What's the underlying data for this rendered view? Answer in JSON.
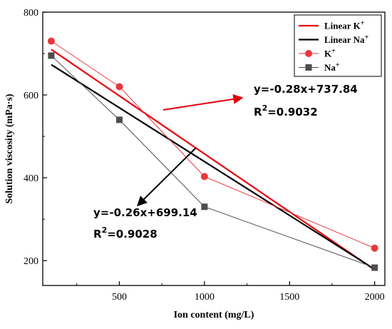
{
  "chart_data": {
    "type": "line",
    "xlabel": "Ion content (mg/L)",
    "ylabel": "Solution viscosity (mPa·s)",
    "xlim": [
      50,
      2060
    ],
    "ylim": [
      140,
      800
    ],
    "xticks": [
      500,
      1000,
      1500,
      2000
    ],
    "yticks": [
      200,
      400,
      600,
      800
    ],
    "series": [
      {
        "name": "K⁺",
        "ion": "K",
        "marker": "circle",
        "color": "#e8383d",
        "x": [
          100,
          500,
          1000,
          2000
        ],
        "y": [
          730,
          620,
          403,
          230
        ]
      },
      {
        "name": "Na⁺",
        "ion": "Na",
        "marker": "square",
        "color": "#4d4d4d",
        "x": [
          100,
          500,
          1000,
          2000
        ],
        "y": [
          695,
          540,
          330,
          183
        ]
      }
    ],
    "fits": [
      {
        "name": "Linear K⁺",
        "ion": "K",
        "color": "#e8000b",
        "slope": -0.28,
        "intercept": 737.84,
        "x_range": [
          100,
          2000
        ],
        "equation": "y=-0.28x+737.84",
        "r2": "R²=0.9032"
      },
      {
        "name": "Linear Na⁺",
        "ion": "Na",
        "color": "#000000",
        "slope": -0.26,
        "intercept": 699.14,
        "x_range": [
          100,
          2000
        ],
        "equation": "y=-0.26x+699.14",
        "r2": "R²=0.9028"
      }
    ],
    "legend": {
      "position": "top-right",
      "entries": [
        {
          "type": "line",
          "prefix": "Linear ",
          "base": "K",
          "sup": "+",
          "color": "#e8000b"
        },
        {
          "type": "line",
          "prefix": "Linear ",
          "base": "Na",
          "sup": "+",
          "color": "#000000"
        },
        {
          "type": "circle",
          "prefix": "",
          "base": "K",
          "sup": "+",
          "color": "#e8383d"
        },
        {
          "type": "square",
          "prefix": "",
          "base": "Na",
          "sup": "+",
          "color": "#4d4d4d"
        }
      ]
    },
    "annotations": [
      {
        "text": "y=-0.28x+737.84",
        "r2_base": "R",
        "r2_sup": "2",
        "r2_rest": "=0.9032",
        "arrow_color": "#e8000b"
      },
      {
        "text": "y=-0.26x+699.14",
        "r2_base": "R",
        "r2_sup": "2",
        "r2_rest": "=0.9028",
        "arrow_color": "#000000"
      }
    ],
    "grid": false
  }
}
